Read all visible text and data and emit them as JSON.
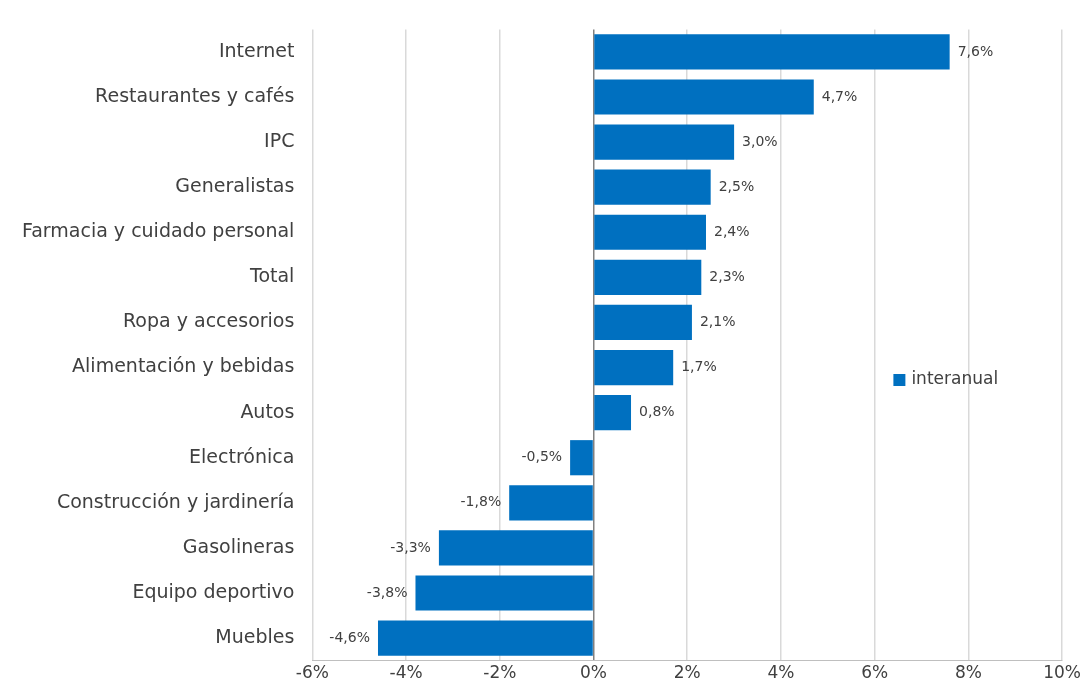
{
  "chart_data": {
    "type": "bar",
    "orientation": "horizontal",
    "categories": [
      "Internet",
      "Restaurantes y cafés",
      "IPC",
      "Generalistas",
      "Farmacia y cuidado personal",
      "Total",
      "Ropa y accesorios",
      "Alimentación y bebidas",
      "Autos",
      "Electrónica",
      "Construcción y jardinería",
      "Gasolineras",
      "Equipo deportivo",
      "Muebles"
    ],
    "series": [
      {
        "name": "interanual",
        "color": "#0070c0",
        "values": [
          7.6,
          4.7,
          3.0,
          2.5,
          2.4,
          2.3,
          2.1,
          1.7,
          0.8,
          -0.5,
          -1.8,
          -3.3,
          -3.8,
          -4.6
        ],
        "value_labels": [
          "7,6%",
          "4,7%",
          "3,0%",
          "2,5%",
          "2,4%",
          "2,3%",
          "2,1%",
          "1,7%",
          "0,8%",
          "-0,5%",
          "-1,8%",
          "-3,3%",
          "-3,8%",
          "-4,6%"
        ]
      }
    ],
    "xlim": [
      -6,
      10
    ],
    "xticks": [
      {
        "value": -6,
        "label": "-6%"
      },
      {
        "value": -4,
        "label": "-4%"
      },
      {
        "value": -2,
        "label": "-2%"
      },
      {
        "value": 0,
        "label": "0%"
      },
      {
        "value": 2,
        "label": "2%"
      },
      {
        "value": 4,
        "label": "4%"
      },
      {
        "value": 6,
        "label": "6%"
      },
      {
        "value": 8,
        "label": "8%"
      },
      {
        "value": 10,
        "label": "10%"
      }
    ],
    "grid": "x",
    "legend": "right"
  }
}
